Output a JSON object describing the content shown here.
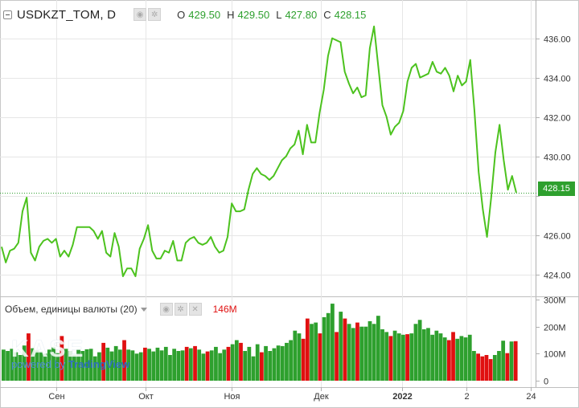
{
  "header": {
    "symbol": "USDKZT_TOM, D",
    "ohlc": [
      {
        "key": "O",
        "value": "429.50"
      },
      {
        "key": "H",
        "value": "429.50"
      },
      {
        "key": "L",
        "value": "427.80"
      },
      {
        "key": "C",
        "value": "428.15"
      }
    ],
    "icons": [
      "eye-icon",
      "gear-icon"
    ]
  },
  "volume": {
    "label": "Объем, единицы валюты (20)",
    "value": "146M",
    "icons": [
      "eye-icon",
      "gear-icon",
      "close-icon"
    ],
    "axis_labels": [
      "300M",
      "200M",
      "100M",
      "0"
    ]
  },
  "price_axis_labels": [
    "436.00",
    "434.00",
    "432.00",
    "430.00",
    "426.00",
    "424.00"
  ],
  "last_price_label": "428.15",
  "time_axis_labels": [
    "Сен",
    "Окт",
    "Ноя",
    "Дек",
    "2022",
    "2",
    "24"
  ],
  "watermark": {
    "logo": "KASE",
    "powered": "powered by",
    "brand": "TradingView"
  },
  "colors": {
    "up": "#2ea02e",
    "down": "#e01010",
    "line": "#4cc21e",
    "grid": "#e6e6e6"
  },
  "chart_data": {
    "type": "line",
    "series_name": "USDKZT_TOM",
    "y_range": [
      423.0,
      437.7
    ],
    "last_value": 428.15,
    "price_line": [
      425.4,
      424.6,
      425.2,
      425.3,
      425.6,
      427.2,
      427.9,
      425.1,
      424.7,
      425.4,
      425.7,
      425.8,
      425.6,
      425.8,
      424.9,
      425.2,
      424.9,
      425.5,
      426.4,
      426.4,
      426.4,
      426.4,
      426.2,
      425.8,
      426.2,
      425.1,
      424.9,
      426.1,
      425.4,
      423.9,
      424.3,
      424.3,
      423.9,
      425.3,
      425.8,
      426.5,
      425.2,
      424.8,
      424.8,
      425.2,
      425.1,
      425.7,
      424.7,
      424.7,
      425.6,
      425.8,
      425.9,
      425.6,
      425.5,
      425.6,
      425.9,
      425.4,
      425.1,
      425.2,
      425.9,
      427.6,
      427.2,
      427.2,
      427.3,
      428.3,
      429.1,
      429.4,
      429.1,
      429.0,
      428.8,
      429.0,
      429.4,
      429.8,
      430.0,
      430.4,
      430.6,
      431.3,
      430.1,
      431.6,
      430.7,
      430.7,
      432.2,
      433.4,
      435.1,
      436.0,
      435.9,
      435.8,
      434.3,
      433.7,
      433.2,
      433.5,
      433.0,
      433.1,
      435.5,
      436.6,
      434.6,
      432.6,
      432.0,
      431.1,
      431.5,
      431.7,
      432.3,
      433.8,
      434.5,
      434.7,
      434.0,
      434.1,
      434.2,
      434.8,
      434.3,
      434.2,
      434.5,
      434.1,
      433.3,
      434.1,
      433.6,
      433.8,
      434.9,
      432.3,
      429.2,
      427.3,
      425.9,
      427.9,
      430.2,
      431.6,
      429.8,
      428.3,
      429.0,
      428.15
    ],
    "volume": [
      [
        115,
        "u"
      ],
      [
        110,
        "u"
      ],
      [
        118,
        "u"
      ],
      [
        105,
        "u"
      ],
      [
        95,
        "u"
      ],
      [
        130,
        "u"
      ],
      [
        175,
        "d"
      ],
      [
        120,
        "u"
      ],
      [
        112,
        "u"
      ],
      [
        108,
        "u"
      ],
      [
        100,
        "u"
      ],
      [
        115,
        "u"
      ],
      [
        125,
        "u"
      ],
      [
        102,
        "u"
      ],
      [
        165,
        "d"
      ],
      [
        118,
        "u"
      ],
      [
        110,
        "u"
      ],
      [
        96,
        "u"
      ],
      [
        114,
        "u"
      ],
      [
        110,
        "u"
      ],
      [
        116,
        "u"
      ],
      [
        118,
        "u"
      ],
      [
        90,
        "u"
      ],
      [
        105,
        "u"
      ],
      [
        140,
        "d"
      ],
      [
        122,
        "u"
      ],
      [
        108,
        "u"
      ],
      [
        128,
        "u"
      ],
      [
        115,
        "u"
      ],
      [
        150,
        "d"
      ],
      [
        115,
        "u"
      ],
      [
        112,
        "u"
      ],
      [
        100,
        "u"
      ],
      [
        105,
        "u"
      ],
      [
        122,
        "d"
      ],
      [
        118,
        "u"
      ],
      [
        108,
        "u"
      ],
      [
        122,
        "u"
      ],
      [
        112,
        "u"
      ],
      [
        125,
        "u"
      ],
      [
        95,
        "u"
      ],
      [
        118,
        "u"
      ],
      [
        110,
        "u"
      ],
      [
        112,
        "u"
      ],
      [
        125,
        "d"
      ],
      [
        120,
        "u"
      ],
      [
        128,
        "d"
      ],
      [
        115,
        "u"
      ],
      [
        100,
        "u"
      ],
      [
        108,
        "d"
      ],
      [
        112,
        "u"
      ],
      [
        125,
        "u"
      ],
      [
        102,
        "u"
      ],
      [
        115,
        "u"
      ],
      [
        125,
        "d"
      ],
      [
        135,
        "u"
      ],
      [
        150,
        "u"
      ],
      [
        140,
        "d"
      ],
      [
        110,
        "u"
      ],
      [
        125,
        "u"
      ],
      [
        90,
        "u"
      ],
      [
        135,
        "u"
      ],
      [
        105,
        "d"
      ],
      [
        128,
        "u"
      ],
      [
        110,
        "u"
      ],
      [
        120,
        "u"
      ],
      [
        130,
        "u"
      ],
      [
        128,
        "u"
      ],
      [
        140,
        "u"
      ],
      [
        150,
        "u"
      ],
      [
        185,
        "u"
      ],
      [
        175,
        "u"
      ],
      [
        155,
        "d"
      ],
      [
        230,
        "d"
      ],
      [
        210,
        "u"
      ],
      [
        215,
        "u"
      ],
      [
        175,
        "d"
      ],
      [
        235,
        "u"
      ],
      [
        250,
        "u"
      ],
      [
        285,
        "u"
      ],
      [
        180,
        "d"
      ],
      [
        255,
        "u"
      ],
      [
        230,
        "d"
      ],
      [
        210,
        "u"
      ],
      [
        195,
        "u"
      ],
      [
        215,
        "d"
      ],
      [
        200,
        "u"
      ],
      [
        200,
        "u"
      ],
      [
        220,
        "u"
      ],
      [
        210,
        "u"
      ],
      [
        240,
        "u"
      ],
      [
        190,
        "u"
      ],
      [
        180,
        "u"
      ],
      [
        165,
        "d"
      ],
      [
        185,
        "u"
      ],
      [
        175,
        "u"
      ],
      [
        170,
        "u"
      ],
      [
        172,
        "d"
      ],
      [
        175,
        "u"
      ],
      [
        210,
        "u"
      ],
      [
        225,
        "u"
      ],
      [
        190,
        "u"
      ],
      [
        195,
        "u"
      ],
      [
        170,
        "u"
      ],
      [
        185,
        "u"
      ],
      [
        175,
        "u"
      ],
      [
        160,
        "u"
      ],
      [
        150,
        "d"
      ],
      [
        180,
        "d"
      ],
      [
        155,
        "u"
      ],
      [
        165,
        "u"
      ],
      [
        160,
        "u"
      ],
      [
        170,
        "u"
      ],
      [
        110,
        "u"
      ],
      [
        100,
        "d"
      ],
      [
        90,
        "d"
      ],
      [
        95,
        "d"
      ],
      [
        80,
        "d"
      ],
      [
        95,
        "u"
      ],
      [
        110,
        "u"
      ],
      [
        148,
        "u"
      ],
      [
        102,
        "d"
      ],
      [
        145,
        "u"
      ],
      [
        146,
        "d"
      ]
    ]
  }
}
